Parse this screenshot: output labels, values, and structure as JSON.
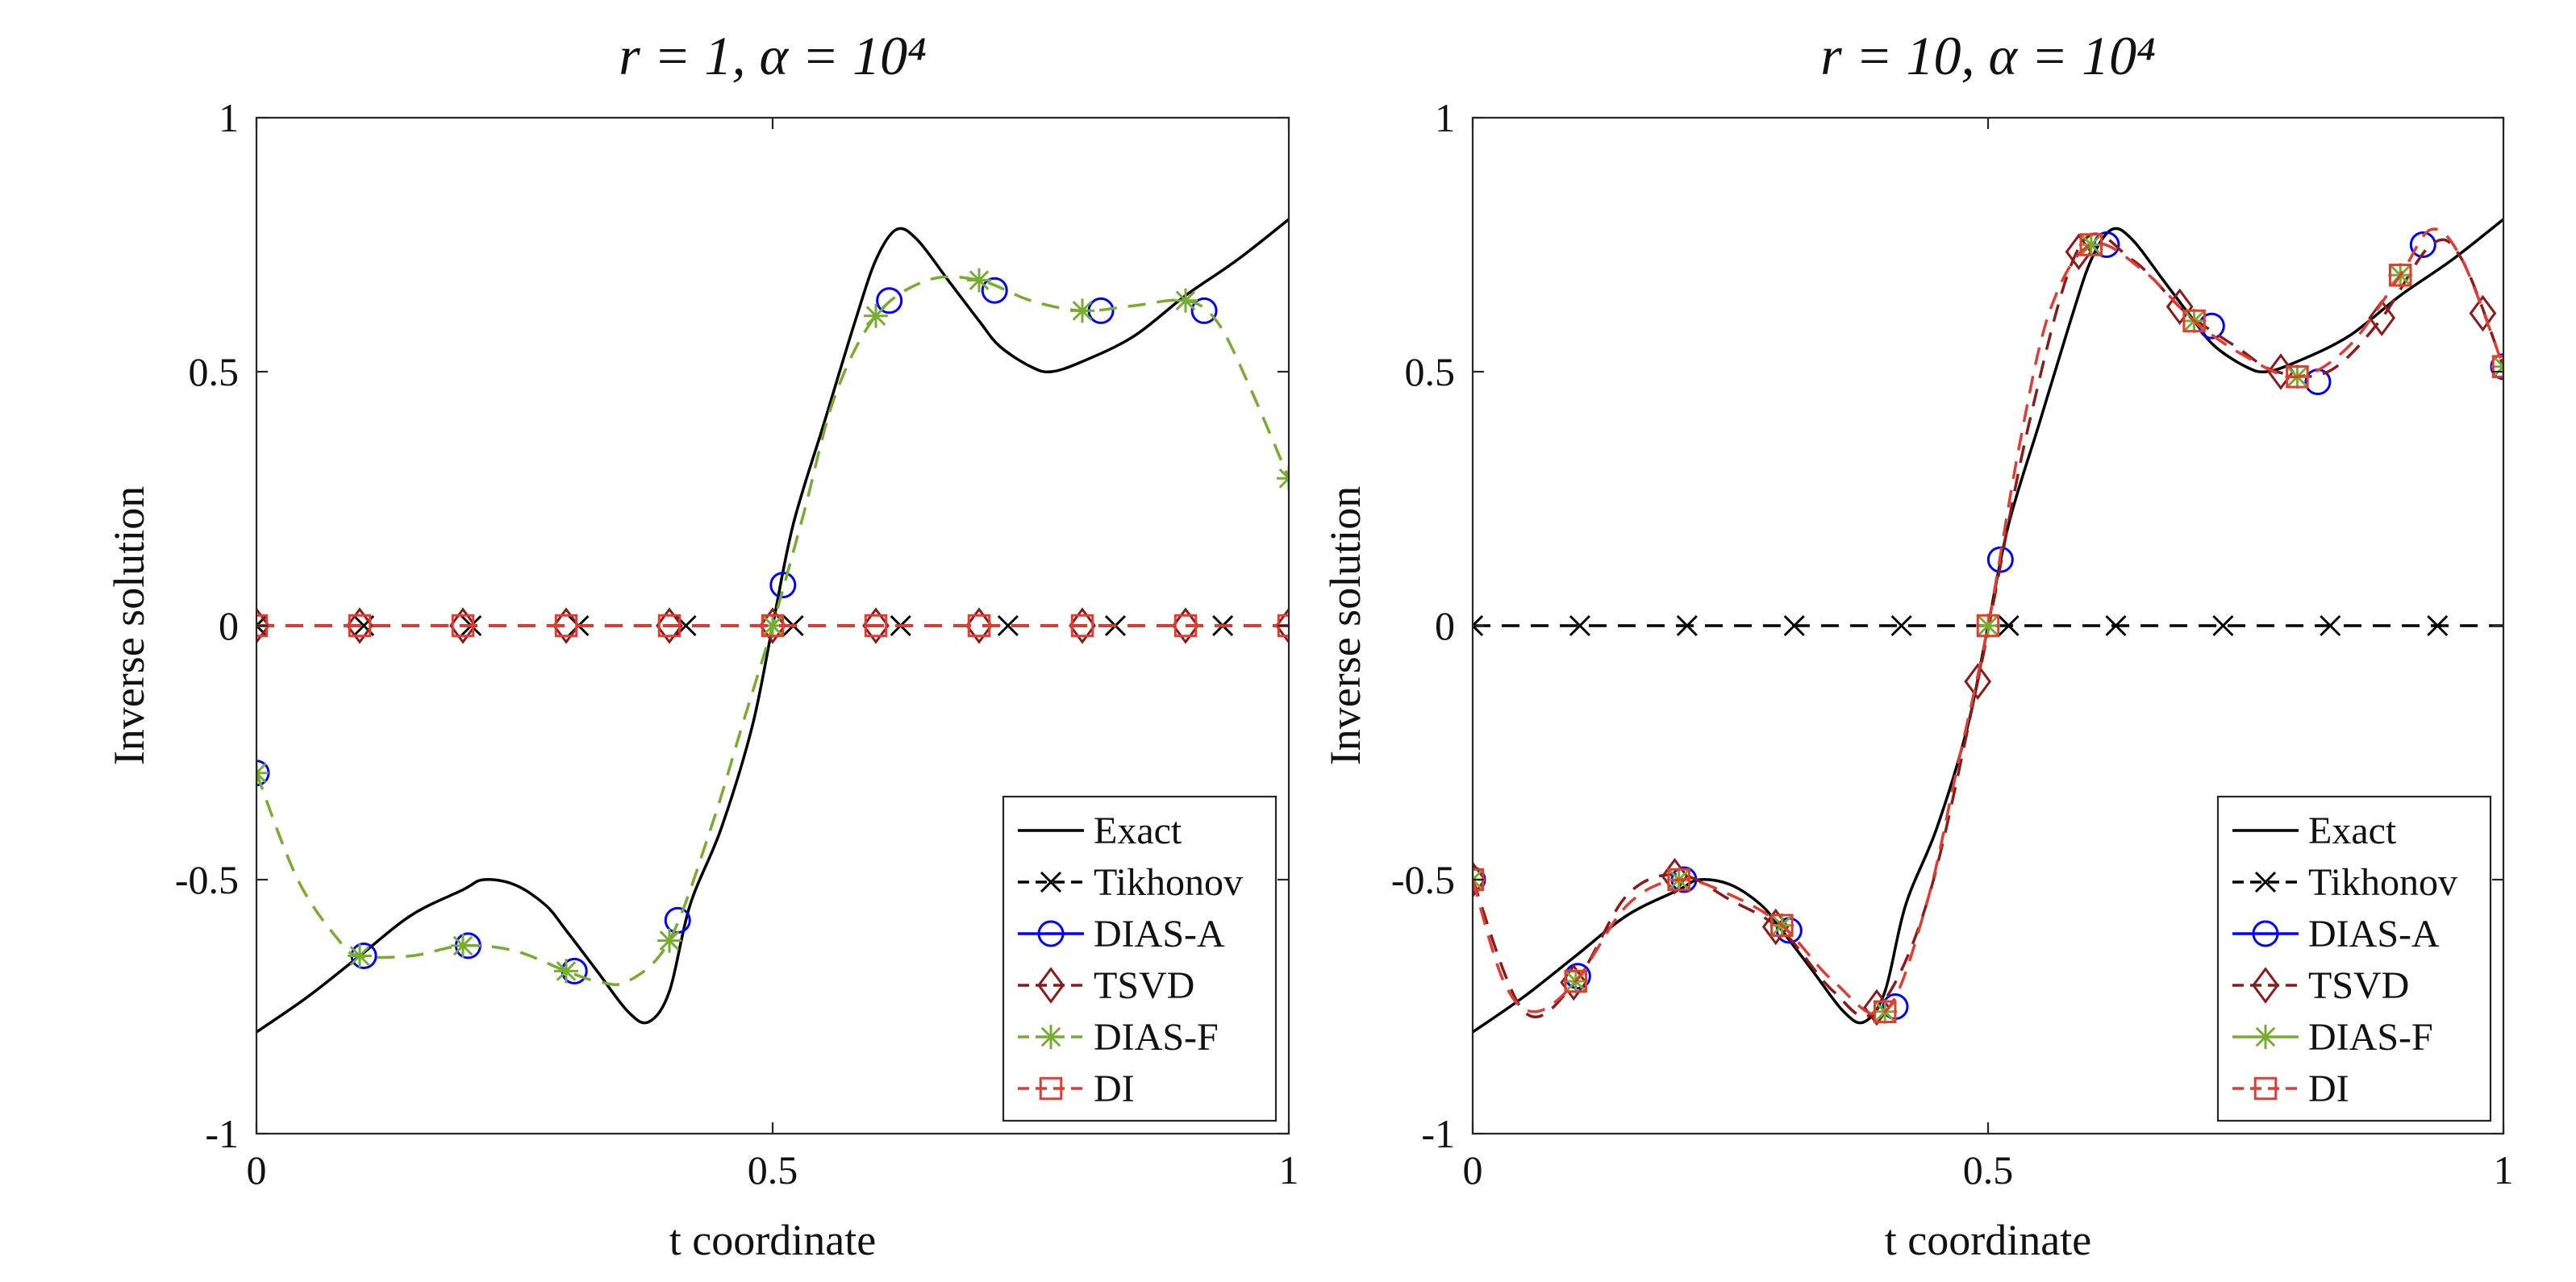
{
  "chart_data": [
    {
      "type": "line",
      "title": "r = 1, α = 10⁴",
      "xlabel": "t coordinate",
      "ylabel": "Inverse solution",
      "xlim": [
        0,
        1
      ],
      "ylim": [
        -1,
        1
      ],
      "xticks": [
        0,
        0.5,
        1
      ],
      "xtick_labels": [
        "0",
        "0.5",
        "1"
      ],
      "yticks": [
        -1,
        -0.5,
        0,
        0.5,
        1
      ],
      "ytick_labels": [
        "-1",
        "-0.5",
        "0",
        "0.5",
        "1"
      ],
      "legend_position": "bottom-right",
      "grid": false,
      "series": [
        {
          "name": "Exact",
          "color": "#000000",
          "dash": "solid",
          "marker": "none",
          "x": [
            0,
            0.05,
            0.1,
            0.15,
            0.2,
            0.22,
            0.25,
            0.28,
            0.3,
            0.33,
            0.36,
            0.38,
            0.4,
            0.42,
            0.45,
            0.48,
            0.5,
            0.52,
            0.55,
            0.58,
            0.6,
            0.62,
            0.64,
            0.67,
            0.7,
            0.72,
            0.75,
            0.77,
            0.8,
            0.85,
            0.9,
            0.95,
            1
          ],
          "y": [
            -0.8,
            -0.73,
            -0.65,
            -0.57,
            -0.52,
            -0.5,
            -0.51,
            -0.55,
            -0.6,
            -0.68,
            -0.76,
            -0.78,
            -0.72,
            -0.55,
            -0.4,
            -0.2,
            0,
            0.2,
            0.4,
            0.6,
            0.72,
            0.78,
            0.76,
            0.68,
            0.6,
            0.55,
            0.51,
            0.5,
            0.52,
            0.57,
            0.65,
            0.72,
            0.8
          ],
          "marker_x": []
        },
        {
          "name": "Tikhonov",
          "color": "#000000",
          "dash": "dashed",
          "marker": "x",
          "x": [
            0,
            1
          ],
          "y": [
            0,
            0
          ],
          "marker_x": [
            0,
            0.104,
            0.208,
            0.312,
            0.416,
            0.52,
            0.624,
            0.728,
            0.832,
            0.936
          ]
        },
        {
          "name": "DIAS-A",
          "color": "#0000ff",
          "dash": "none",
          "marker": "circle",
          "x": [
            0,
            0.104,
            0.205,
            0.308,
            0.408,
            0.51,
            0.613,
            0.715,
            0.818,
            0.918
          ],
          "y": [
            -0.29,
            -0.65,
            -0.63,
            -0.68,
            -0.58,
            0.08,
            0.64,
            0.66,
            0.62,
            0.62
          ],
          "marker_x": [
            0,
            0.104,
            0.205,
            0.308,
            0.408,
            0.51,
            0.613,
            0.715,
            0.818,
            0.918
          ]
        },
        {
          "name": "TSVD",
          "color": "#8b1a1a",
          "dash": "dashed",
          "marker": "diamond",
          "x": [
            0,
            1
          ],
          "y": [
            0,
            0
          ],
          "marker_x": [
            0,
            0.1,
            0.2,
            0.3,
            0.4,
            0.5,
            0.6,
            0.7,
            0.8,
            0.9,
            1
          ]
        },
        {
          "name": "DIAS-F",
          "color": "#77ac30",
          "dash": "dashed",
          "marker": "asterisk",
          "x": [
            0,
            0.04,
            0.08,
            0.1,
            0.15,
            0.2,
            0.25,
            0.3,
            0.33,
            0.36,
            0.4,
            0.44,
            0.47,
            0.5,
            0.53,
            0.56,
            0.6,
            0.65,
            0.7,
            0.75,
            0.8,
            0.85,
            0.9,
            0.93,
            0.96,
            1
          ],
          "y": [
            -0.29,
            -0.5,
            -0.62,
            -0.65,
            -0.65,
            -0.63,
            -0.64,
            -0.68,
            -0.7,
            -0.7,
            -0.62,
            -0.4,
            -0.2,
            0,
            0.22,
            0.45,
            0.61,
            0.68,
            0.68,
            0.64,
            0.62,
            0.63,
            0.64,
            0.6,
            0.48,
            0.29
          ],
          "marker_x": [
            0,
            0.1,
            0.2,
            0.3,
            0.4,
            0.5,
            0.6,
            0.7,
            0.8,
            0.9,
            1
          ]
        },
        {
          "name": "DI",
          "color": "#e03c31",
          "dash": "dashed",
          "marker": "square",
          "x": [
            0,
            1
          ],
          "y": [
            0,
            0
          ],
          "marker_x": [
            0,
            0.1,
            0.2,
            0.3,
            0.4,
            0.5,
            0.6,
            0.7,
            0.8,
            0.9,
            1
          ]
        }
      ]
    },
    {
      "type": "line",
      "title": "r = 10, α = 10⁴",
      "xlabel": "t coordinate",
      "ylabel": "Inverse solution",
      "xlim": [
        0,
        1
      ],
      "ylim": [
        -1,
        1
      ],
      "xticks": [
        0,
        0.5,
        1
      ],
      "xtick_labels": [
        "0",
        "0.5",
        "1"
      ],
      "yticks": [
        -1,
        -0.5,
        0,
        0.5,
        1
      ],
      "ytick_labels": [
        "-1",
        "-0.5",
        "0",
        "0.5",
        "1"
      ],
      "legend_position": "bottom-right",
      "grid": false,
      "series": [
        {
          "name": "Exact",
          "color": "#000000",
          "dash": "solid",
          "marker": "none",
          "x": [
            0,
            0.05,
            0.1,
            0.15,
            0.2,
            0.22,
            0.25,
            0.28,
            0.3,
            0.33,
            0.36,
            0.38,
            0.4,
            0.42,
            0.45,
            0.48,
            0.5,
            0.52,
            0.55,
            0.58,
            0.6,
            0.62,
            0.64,
            0.67,
            0.7,
            0.72,
            0.75,
            0.77,
            0.8,
            0.85,
            0.9,
            0.95,
            1
          ],
          "y": [
            -0.8,
            -0.73,
            -0.65,
            -0.57,
            -0.52,
            -0.5,
            -0.51,
            -0.55,
            -0.6,
            -0.68,
            -0.76,
            -0.78,
            -0.72,
            -0.55,
            -0.4,
            -0.2,
            0,
            0.2,
            0.4,
            0.6,
            0.72,
            0.78,
            0.76,
            0.68,
            0.6,
            0.55,
            0.51,
            0.5,
            0.52,
            0.57,
            0.65,
            0.72,
            0.8
          ],
          "marker_x": []
        },
        {
          "name": "Tikhonov",
          "color": "#000000",
          "dash": "dashed",
          "marker": "x",
          "x": [
            0,
            1
          ],
          "y": [
            0,
            0
          ],
          "marker_x": [
            0,
            0.104,
            0.208,
            0.312,
            0.416,
            0.52,
            0.624,
            0.728,
            0.832,
            0.936
          ]
        },
        {
          "name": "DIAS-A",
          "color": "#0000ff",
          "dash": "none",
          "marker": "circle",
          "x": [
            0,
            0.102,
            0.205,
            0.307,
            0.41,
            0.512,
            0.615,
            0.717,
            0.82,
            0.922,
            1
          ],
          "y": [
            -0.5,
            -0.69,
            -0.5,
            -0.6,
            -0.75,
            0.13,
            0.75,
            0.59,
            0.48,
            0.75,
            0.51
          ],
          "marker_x": [
            0,
            0.102,
            0.205,
            0.307,
            0.41,
            0.512,
            0.615,
            0.717,
            0.82,
            0.922,
            1
          ]
        },
        {
          "name": "TSVD",
          "color": "#8b1a1a",
          "dash": "dashed",
          "marker": "diamond",
          "x": [
            0,
            0.05,
            0.1,
            0.15,
            0.2,
            0.25,
            0.3,
            0.35,
            0.39,
            0.44,
            0.49,
            0.54,
            0.59,
            0.64,
            0.69,
            0.74,
            0.78,
            0.83,
            0.88,
            0.93,
            0.96,
            1
          ],
          "y": [
            -0.5,
            -0.76,
            -0.7,
            -0.53,
            -0.49,
            -0.54,
            -0.6,
            -0.72,
            -0.76,
            -0.55,
            -0.11,
            0.4,
            0.75,
            0.72,
            0.62,
            0.55,
            0.5,
            0.5,
            0.6,
            0.75,
            0.72,
            0.51
          ],
          "marker_x": [
            0,
            0.098,
            0.196,
            0.294,
            0.392,
            0.49,
            0.588,
            0.686,
            0.784,
            0.882,
            0.98
          ]
        },
        {
          "name": "DIAS-F",
          "color": "#77ac30",
          "dash": "none",
          "marker": "asterisk",
          "x": [
            0,
            0.1,
            0.2,
            0.3,
            0.4,
            0.5,
            0.6,
            0.7,
            0.8,
            0.9,
            1
          ],
          "y": [
            -0.5,
            -0.7,
            -0.5,
            -0.59,
            -0.76,
            0,
            0.75,
            0.6,
            0.49,
            0.69,
            0.51
          ],
          "marker_x": [
            0,
            0.1,
            0.2,
            0.3,
            0.4,
            0.5,
            0.6,
            0.7,
            0.8,
            0.9,
            1
          ]
        },
        {
          "name": "DI",
          "color": "#e03c31",
          "dash": "dashed",
          "marker": "square",
          "x": [
            0,
            0.03,
            0.06,
            0.1,
            0.15,
            0.2,
            0.25,
            0.3,
            0.35,
            0.4,
            0.44,
            0.47,
            0.5,
            0.53,
            0.56,
            0.6,
            0.65,
            0.7,
            0.75,
            0.8,
            0.85,
            0.9,
            0.93,
            0.96,
            1
          ],
          "y": [
            -0.5,
            -0.7,
            -0.76,
            -0.7,
            -0.55,
            -0.5,
            -0.53,
            -0.59,
            -0.7,
            -0.76,
            -0.55,
            -0.28,
            0,
            0.35,
            0.62,
            0.75,
            0.7,
            0.6,
            0.53,
            0.49,
            0.55,
            0.69,
            0.78,
            0.72,
            0.51
          ],
          "marker_x": [
            0,
            0.1,
            0.2,
            0.3,
            0.4,
            0.5,
            0.6,
            0.7,
            0.8,
            0.9,
            1
          ]
        }
      ]
    }
  ]
}
